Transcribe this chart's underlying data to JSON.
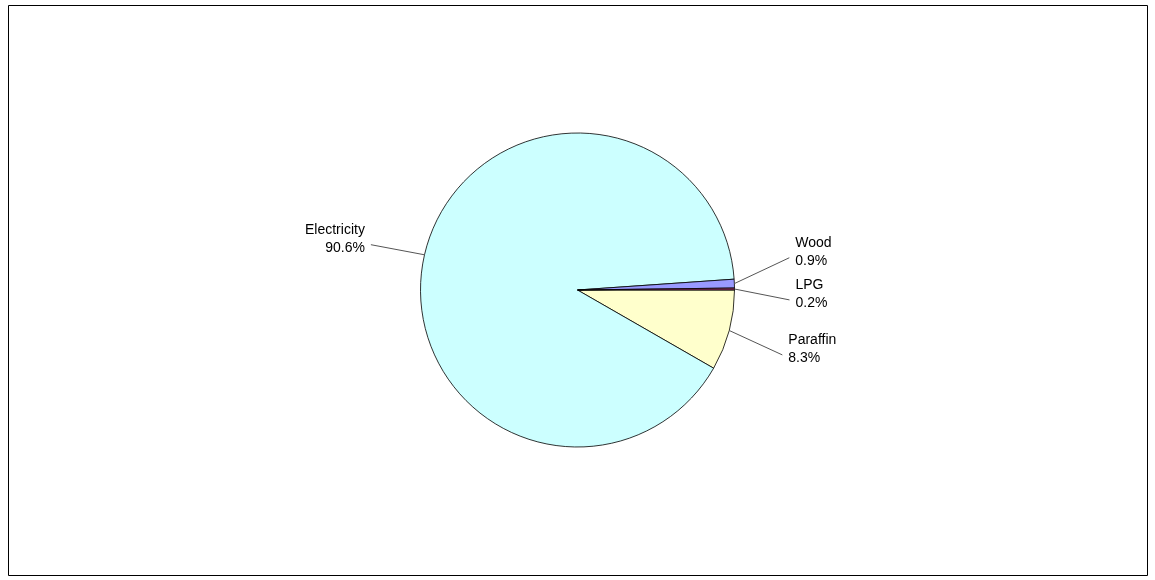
{
  "chart_data": {
    "type": "pie",
    "categories": [
      "Paraffin",
      "Electricity",
      "Wood",
      "LPG"
    ],
    "values": [
      8.3,
      90.6,
      0.9,
      0.2
    ],
    "value_labels": [
      "8.3%",
      "90.6%",
      "0.9%",
      "0.2%"
    ],
    "colors": [
      "#ffffcc",
      "#ccffff",
      "#9999ff",
      "#993366"
    ]
  }
}
